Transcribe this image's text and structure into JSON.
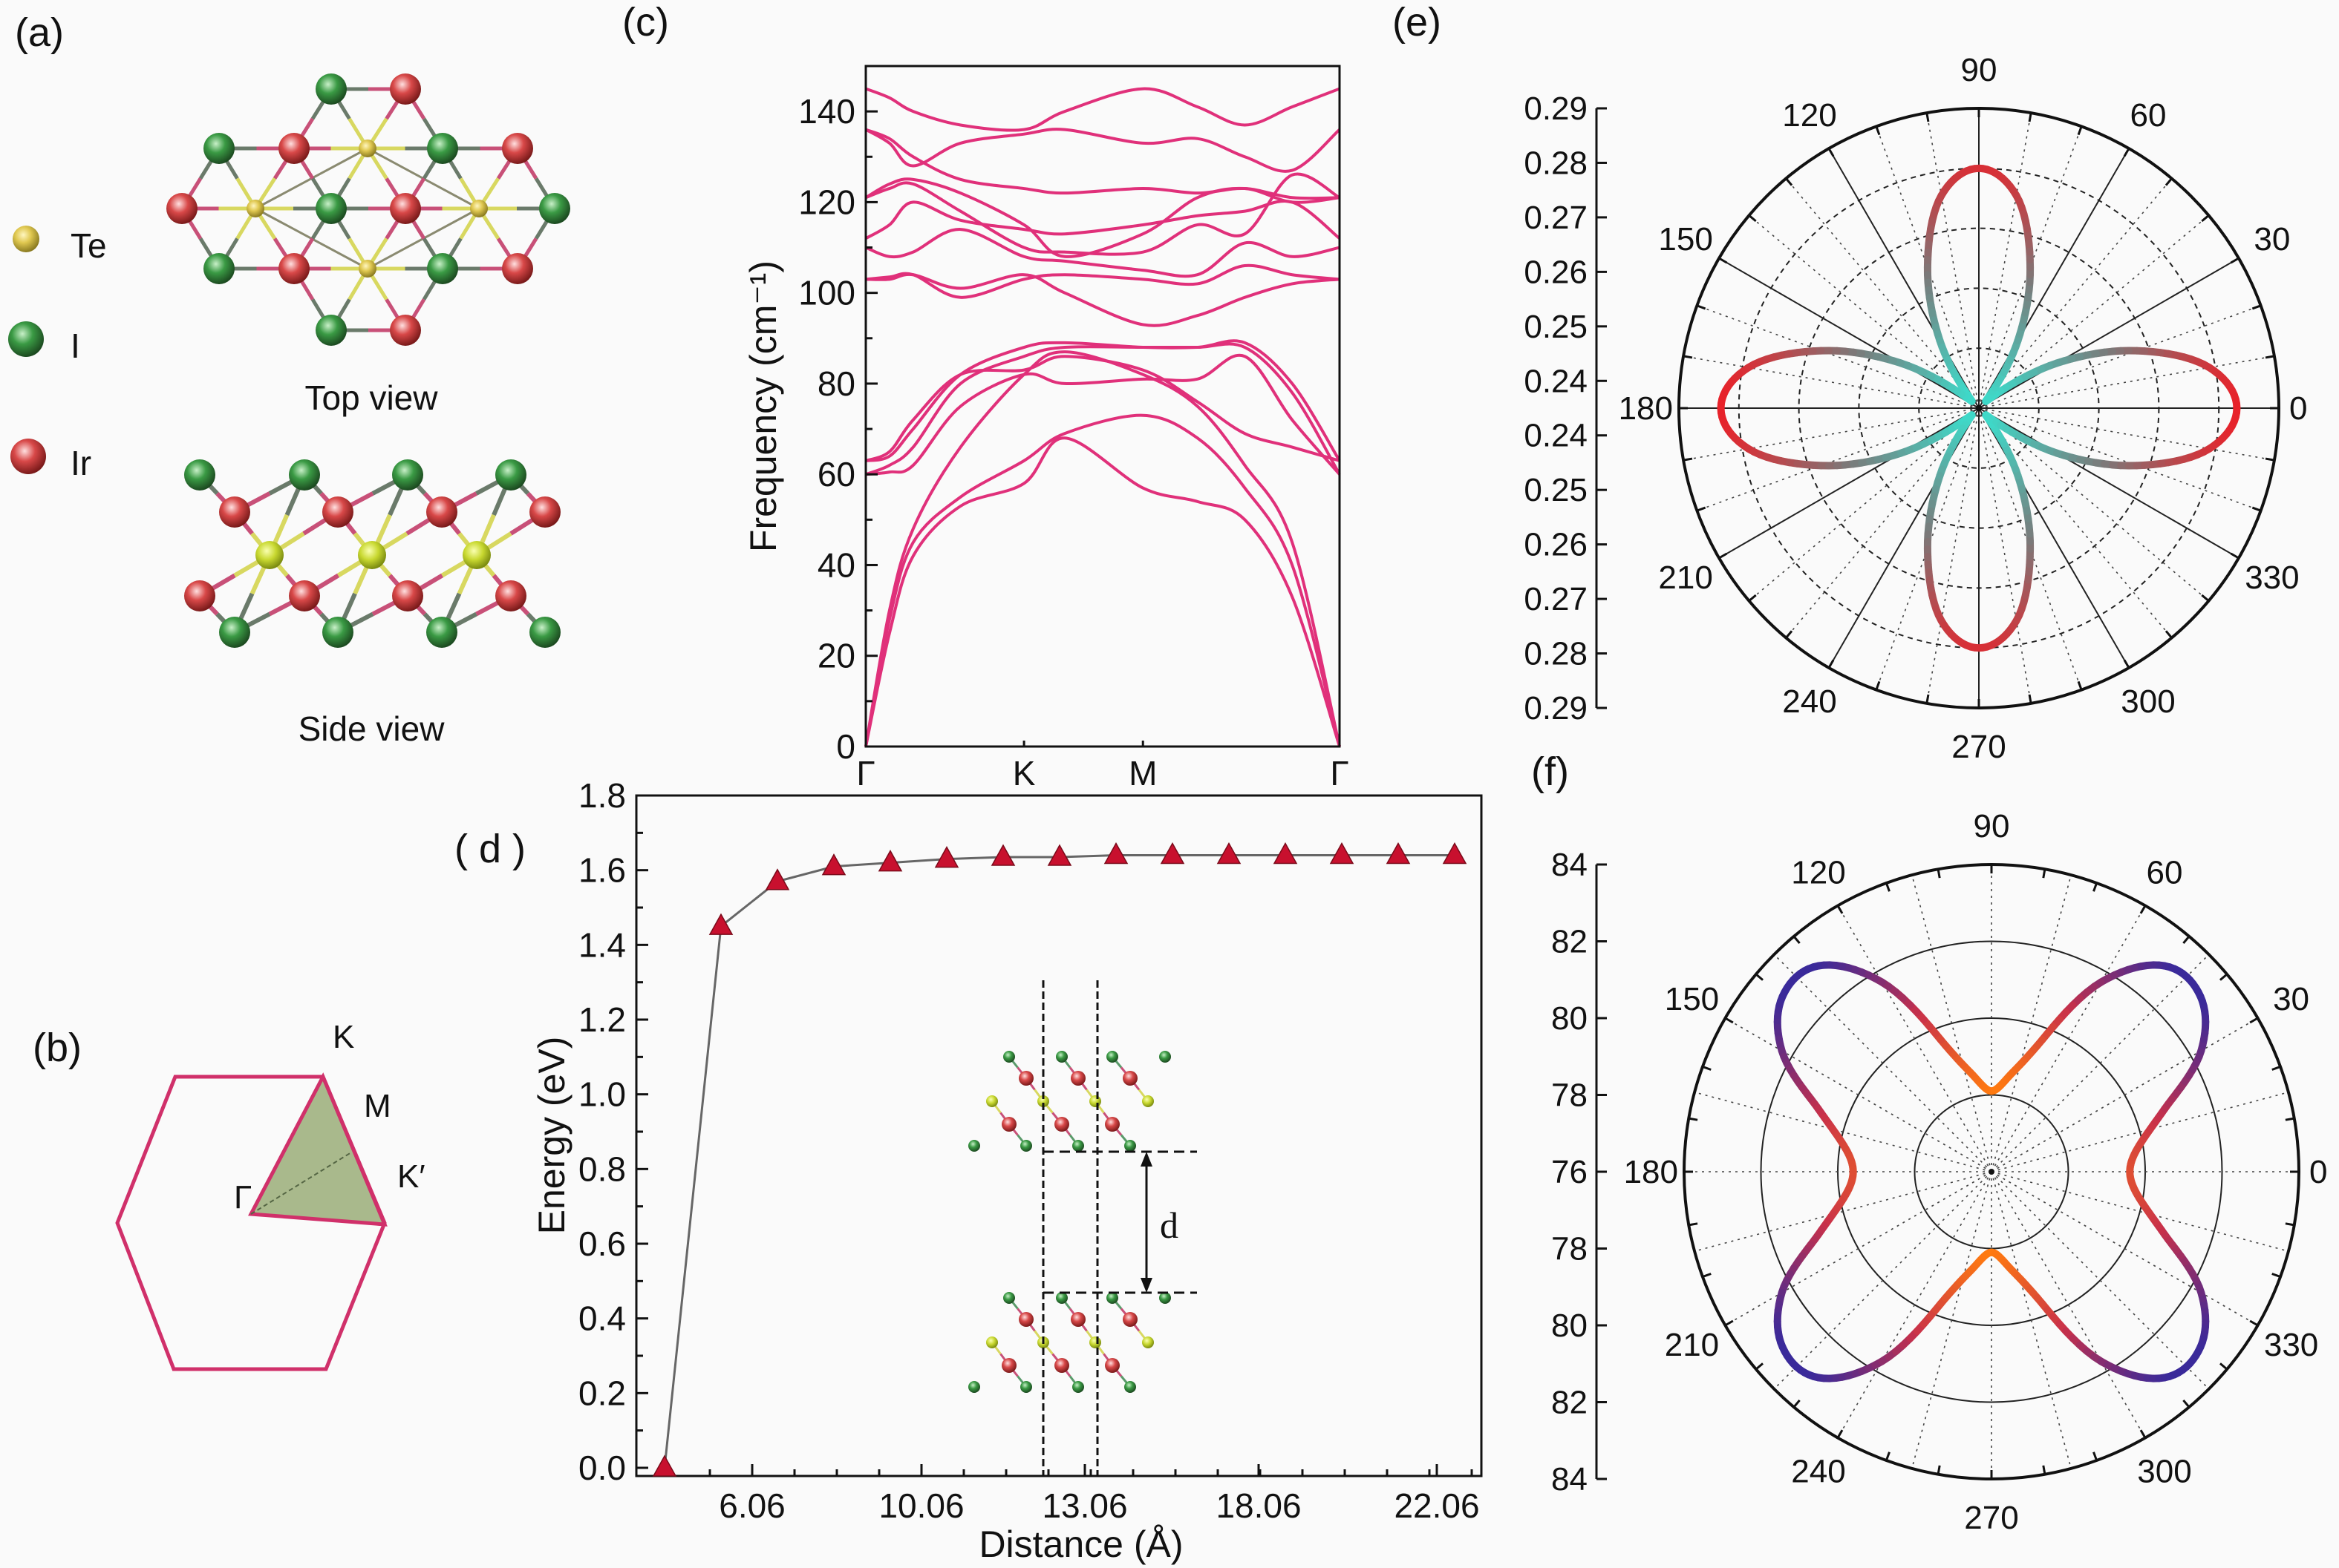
{
  "panel_a": {
    "label": "(a)",
    "legend": [
      {
        "symbol": "Te",
        "color": "#d8b848"
      },
      {
        "symbol": "I",
        "color": "#2f8a3a"
      },
      {
        "symbol": "Ir",
        "color": "#d64040"
      }
    ],
    "top_view_caption": "Top view",
    "side_view_caption": "Side view"
  },
  "panel_b": {
    "label": "(b)",
    "points": {
      "K": "K",
      "M": "M",
      "K_prime": "K′",
      "Gamma": "Γ"
    },
    "edge_color": "#d0306a",
    "fill_color": "#a9b98c"
  },
  "chart_data": [
    {
      "panel": "(c)",
      "type": "line",
      "ylabel": "Frequency (cm⁻¹)",
      "xlabel": "",
      "ylim": [
        0,
        150
      ],
      "y_ticks": [
        "0",
        "20",
        "40",
        "60",
        "80",
        "100",
        "120",
        "140"
      ],
      "high_symmetry_points": [
        {
          "label": "Γ",
          "x": 0
        },
        {
          "label": "K",
          "x": 0.334
        },
        {
          "label": "M",
          "x": 0.585
        },
        {
          "label": "Γ",
          "x": 1
        }
      ],
      "line_color": "#e0307a",
      "x": [
        0,
        0.05,
        0.1,
        0.2,
        0.334,
        0.42,
        0.585,
        0.7,
        0.8,
        0.9,
        1.0
      ],
      "series": [
        {
          "values": [
            0,
            25,
            42,
            53,
            58,
            68,
            57,
            54,
            50,
            33,
            0
          ]
        },
        {
          "values": [
            0,
            28,
            45,
            55,
            63,
            69,
            73,
            68,
            57,
            40,
            0
          ]
        },
        {
          "values": [
            0,
            30,
            48,
            66,
            82,
            87,
            82,
            75,
            62,
            45,
            0
          ]
        },
        {
          "values": [
            60,
            60.5,
            62,
            75,
            82,
            80,
            81,
            81,
            86,
            72,
            60
          ]
        },
        {
          "values": [
            60,
            62,
            66,
            80,
            86,
            88,
            88,
            88,
            88,
            78,
            60
          ]
        },
        {
          "values": [
            63,
            65,
            72,
            82,
            83,
            86,
            83,
            76,
            69,
            66,
            63
          ]
        },
        {
          "values": [
            63,
            64,
            70,
            82,
            88,
            89,
            88,
            88,
            89,
            80,
            63
          ]
        },
        {
          "values": [
            103,
            103,
            104,
            101,
            104,
            100,
            93,
            95,
            99,
            102,
            103
          ]
        },
        {
          "values": [
            103,
            103.5,
            104,
            99,
            103,
            104,
            103,
            102,
            106,
            104,
            103
          ]
        },
        {
          "values": [
            110,
            108,
            109,
            114,
            108,
            107,
            105,
            104,
            111,
            108,
            110
          ]
        },
        {
          "values": [
            112,
            115,
            120,
            116,
            114,
            113,
            115,
            117,
            118,
            120,
            112
          ]
        },
        {
          "values": [
            121,
            123,
            124,
            118,
            110,
            109,
            109,
            115,
            113,
            126,
            121
          ]
        },
        {
          "values": [
            121,
            124,
            125,
            122,
            115,
            108,
            113,
            121,
            123,
            120,
            121
          ]
        },
        {
          "values": [
            136,
            134,
            130,
            125,
            123,
            122,
            123,
            122,
            123,
            121,
            121
          ]
        },
        {
          "values": [
            136,
            133,
            128,
            133,
            135,
            136,
            133,
            134,
            130,
            127,
            136
          ]
        },
        {
          "values": [
            145,
            143,
            140,
            137,
            136,
            140,
            145,
            141,
            137,
            141,
            145
          ]
        }
      ]
    },
    {
      "panel": "( d )",
      "type": "line",
      "xlabel": "Distance (Å)",
      "ylabel": "Energy (eV)",
      "ylim": [
        0,
        1.8
      ],
      "y_ticks": [
        "0.0",
        "0.2",
        "0.4",
        "0.6",
        "0.8",
        "1.0",
        "1.2",
        "1.4",
        "1.6",
        "1.8"
      ],
      "x_tick_labels": [
        "6.06",
        "10.06",
        "13.06",
        "18.06",
        "22.06"
      ],
      "values": [
        0.0,
        1.45,
        1.57,
        1.61,
        1.62,
        1.63,
        1.635,
        1.635,
        1.64,
        1.64,
        1.64,
        1.64,
        1.64,
        1.64,
        1.64
      ],
      "marker": "triangle",
      "marker_color": "#c8102e",
      "line_color": "#666666",
      "inset_label": "d"
    },
    {
      "panel": "(e)",
      "type": "polar",
      "r_range": [
        0.24,
        0.29
      ],
      "radial_tick_labels": [
        "0.29",
        "0.28",
        "0.27",
        "0.26",
        "0.25",
        "0.24",
        "0.24",
        "0.25",
        "0.26",
        "0.27",
        "0.28",
        "0.29"
      ],
      "angle_labels": [
        "0",
        "30",
        "60",
        "90",
        "120",
        "150",
        "180",
        "210",
        "240",
        "270",
        "300",
        "330"
      ],
      "colormap": [
        "#3fd8c8",
        "#7a7a7a",
        "#e8222a"
      ],
      "theta_deg": [
        0,
        10,
        20,
        30,
        40,
        50,
        60,
        70,
        80,
        90,
        100,
        110,
        120,
        130,
        140,
        150,
        160,
        170,
        180,
        190,
        200,
        210,
        220,
        230,
        240,
        250,
        260,
        270,
        280,
        290,
        300,
        310,
        320,
        330,
        340,
        350
      ],
      "values": [
        0.283,
        0.279,
        0.268,
        0.255,
        0.243,
        0.243,
        0.253,
        0.265,
        0.276,
        0.28,
        0.276,
        0.265,
        0.253,
        0.243,
        0.243,
        0.255,
        0.268,
        0.279,
        0.283,
        0.279,
        0.268,
        0.255,
        0.243,
        0.243,
        0.253,
        0.265,
        0.276,
        0.28,
        0.276,
        0.265,
        0.253,
        0.243,
        0.243,
        0.255,
        0.268,
        0.279
      ]
    },
    {
      "panel": "(f)",
      "type": "polar",
      "r_range": [
        76,
        84
      ],
      "radial_tick_labels": [
        "84",
        "82",
        "80",
        "78",
        "76",
        "78",
        "80",
        "82",
        "84"
      ],
      "angle_labels": [
        "0",
        "30",
        "60",
        "90",
        "120",
        "150",
        "180",
        "210",
        "240",
        "270",
        "300",
        "330"
      ],
      "colormap": [
        "#ff7a10",
        "#c8304a",
        "#3a2a9a"
      ],
      "theta_deg": [
        0,
        10,
        20,
        30,
        40,
        50,
        60,
        70,
        80,
        90,
        100,
        110,
        120,
        130,
        140,
        150,
        160,
        170,
        180,
        190,
        200,
        210,
        220,
        230,
        240,
        250,
        260,
        270,
        280,
        290,
        300,
        310,
        320,
        330,
        340,
        350
      ],
      "values": [
        79.6,
        79.9,
        80.8,
        82.3,
        83.1,
        83.0,
        81.7,
        79.5,
        78.5,
        78.1,
        78.5,
        79.5,
        81.7,
        83.0,
        83.1,
        82.3,
        80.8,
        79.9,
        79.6,
        79.9,
        80.8,
        82.3,
        83.1,
        83.0,
        81.7,
        79.5,
        78.5,
        78.1,
        78.5,
        79.5,
        81.7,
        83.0,
        83.1,
        82.3,
        80.8,
        79.9
      ]
    }
  ]
}
